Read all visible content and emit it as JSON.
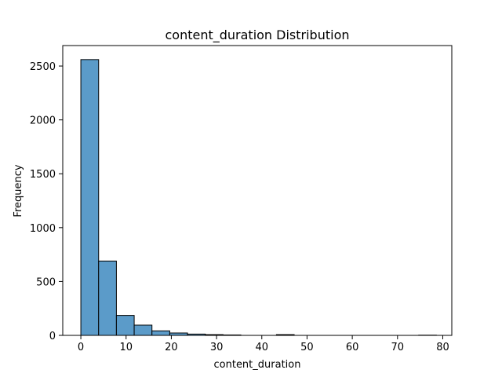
{
  "chart_data": {
    "type": "bar",
    "title": "content_duration Distribution",
    "xlabel": "content_duration",
    "ylabel": "Frequency",
    "xlim": [
      -4,
      82
    ],
    "ylim": [
      0,
      2690
    ],
    "xticks": [
      0,
      10,
      20,
      30,
      40,
      50,
      60,
      70,
      80
    ],
    "yticks": [
      0,
      500,
      1000,
      1500,
      2000,
      2500
    ],
    "bin_edges": [
      0,
      3.93,
      7.86,
      11.79,
      15.72,
      19.65,
      23.58,
      27.51,
      31.44,
      35.37,
      39.3,
      43.23,
      47.16,
      51.09,
      55.02,
      58.95,
      62.88,
      66.81,
      70.74,
      74.67,
      78.6
    ],
    "values": [
      2560,
      690,
      185,
      95,
      42,
      22,
      12,
      7,
      4,
      0,
      0,
      7,
      0,
      0,
      0,
      0,
      0,
      0,
      0,
      2
    ],
    "grid": false,
    "bar_color": "#5b9bc9",
    "edge_color": "#000000"
  }
}
